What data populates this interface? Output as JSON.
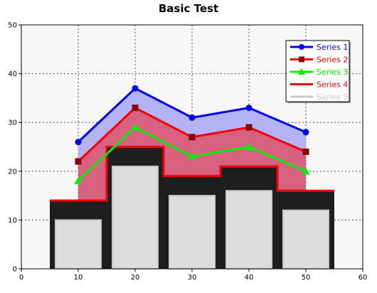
{
  "chart_data": {
    "type": "line",
    "title": "Basic Test",
    "xlabel": "",
    "ylabel": "",
    "xlim": [
      0,
      60
    ],
    "ylim": [
      0,
      50
    ],
    "xticks": [
      0,
      10,
      20,
      30,
      40,
      50,
      60
    ],
    "yticks": [
      0,
      10,
      20,
      30,
      40,
      50
    ],
    "grid": true,
    "legend_position": "top-right",
    "x": [
      10,
      20,
      30,
      40,
      50
    ],
    "series": [
      {
        "name": "Series 1",
        "type": "line+area",
        "marker": "circle",
        "color": "#0000ee",
        "fill": "#b3b3f5",
        "values": [
          26,
          37,
          31,
          33,
          28
        ]
      },
      {
        "name": "Series 2",
        "type": "line+area",
        "marker": "square",
        "color": "#ee0000",
        "marker_color": "#8b0000",
        "fill": "#d8607f",
        "values": [
          22,
          33,
          27,
          29,
          24
        ]
      },
      {
        "name": "Series 3",
        "type": "line",
        "marker": "triangle",
        "color": "#00ee00",
        "values": [
          18,
          29,
          23,
          25,
          20
        ]
      },
      {
        "name": "Series 4",
        "type": "step",
        "color": "#ee0000",
        "fill": "#1e1e1e",
        "values": [
          14,
          25,
          19,
          21,
          16
        ]
      },
      {
        "name": "Series 5",
        "type": "bar",
        "color": "#c8c8c8",
        "fill": "#dcdcdc",
        "values": [
          10,
          21,
          15,
          16,
          12
        ]
      }
    ]
  }
}
